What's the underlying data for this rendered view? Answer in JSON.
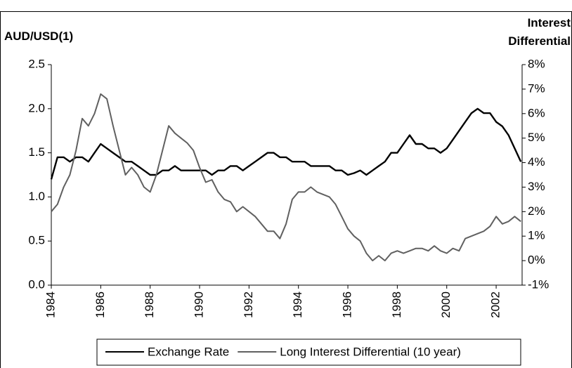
{
  "chart_data": {
    "type": "line",
    "ylabel": "AUD/USD(1)",
    "y2label": "Interest Differential",
    "x": [
      1984,
      1984.25,
      1984.5,
      1984.75,
      1985,
      1985.25,
      1985.5,
      1985.75,
      1986,
      1986.25,
      1986.5,
      1986.75,
      1987,
      1987.25,
      1987.5,
      1987.75,
      1988,
      1988.25,
      1988.5,
      1988.75,
      1989,
      1989.25,
      1989.5,
      1989.75,
      1990,
      1990.25,
      1990.5,
      1990.75,
      1991,
      1991.25,
      1991.5,
      1991.75,
      1992,
      1992.25,
      1992.5,
      1992.75,
      1993,
      1993.25,
      1993.5,
      1993.75,
      1994,
      1994.25,
      1994.5,
      1994.75,
      1995,
      1995.25,
      1995.5,
      1995.75,
      1996,
      1996.25,
      1996.5,
      1996.75,
      1997,
      1997.25,
      1997.5,
      1997.75,
      1998,
      1998.25,
      1998.5,
      1998.75,
      1999,
      1999.25,
      1999.5,
      1999.75,
      2000,
      2000.25,
      2000.5,
      2000.75,
      2001,
      2001.25,
      2001.5,
      2001.75,
      2002,
      2002.25,
      2002.5,
      2002.75,
      2003
    ],
    "series": [
      {
        "name": "Exchange Rate",
        "color": "#000000",
        "values": [
          1.2,
          1.45,
          1.45,
          1.4,
          1.45,
          1.45,
          1.4,
          1.5,
          1.6,
          1.55,
          1.5,
          1.45,
          1.4,
          1.4,
          1.35,
          1.3,
          1.25,
          1.25,
          1.3,
          1.3,
          1.35,
          1.3,
          1.3,
          1.3,
          1.3,
          1.3,
          1.25,
          1.3,
          1.3,
          1.35,
          1.35,
          1.3,
          1.35,
          1.4,
          1.45,
          1.5,
          1.5,
          1.45,
          1.45,
          1.4,
          1.4,
          1.4,
          1.35,
          1.35,
          1.35,
          1.35,
          1.3,
          1.3,
          1.25,
          1.27,
          1.3,
          1.25,
          1.3,
          1.35,
          1.4,
          1.5,
          1.5,
          1.6,
          1.7,
          1.6,
          1.6,
          1.55,
          1.55,
          1.5,
          1.55,
          1.65,
          1.75,
          1.85,
          1.95,
          2.0,
          1.95,
          1.95,
          1.85,
          1.8,
          1.7,
          1.55,
          1.4
        ]
      },
      {
        "name": "Long Interest Differential (10 year)",
        "color": "#606060",
        "axis": "y2",
        "values": [
          2.0,
          2.3,
          3.0,
          3.5,
          4.5,
          5.8,
          5.5,
          6.0,
          6.8,
          6.6,
          5.5,
          4.5,
          3.5,
          3.8,
          3.5,
          3.0,
          2.8,
          3.5,
          4.5,
          5.5,
          5.2,
          5.0,
          4.8,
          4.5,
          3.8,
          3.2,
          3.3,
          2.8,
          2.5,
          2.4,
          2.0,
          2.2,
          2.0,
          1.8,
          1.5,
          1.2,
          1.2,
          0.9,
          1.5,
          2.5,
          2.8,
          2.8,
          3.0,
          2.8,
          2.7,
          2.6,
          2.3,
          1.8,
          1.3,
          1.0,
          0.8,
          0.3,
          0.0,
          0.2,
          0.0,
          0.3,
          0.4,
          0.3,
          0.4,
          0.5,
          0.5,
          0.4,
          0.6,
          0.4,
          0.3,
          0.5,
          0.4,
          0.9,
          1.0,
          1.1,
          1.2,
          1.4,
          1.8,
          1.5,
          1.6,
          1.8,
          1.6
        ]
      }
    ],
    "xlim": [
      1984,
      2003.05
    ],
    "xticks": [
      1984,
      1986,
      1988,
      1990,
      1992,
      1994,
      1996,
      1998,
      2000,
      2002
    ],
    "ylim": [
      0,
      2.5
    ],
    "yticks": [
      {
        "value": 0,
        "label": "0.0"
      },
      0.5,
      {
        "value": 1,
        "label": "1.0"
      },
      1.5,
      {
        "value": 2,
        "label": "2.0"
      },
      2.5
    ],
    "y2lim": [
      -1,
      8
    ],
    "y2ticks": [
      {
        "value": -1,
        "label": "-1%"
      },
      {
        "value": 0,
        "label": "0%"
      },
      {
        "value": 1,
        "label": "1%"
      },
      {
        "value": 2,
        "label": "2%"
      },
      {
        "value": 3,
        "label": "3%"
      },
      {
        "value": 4,
        "label": "4%"
      },
      {
        "value": 5,
        "label": "5%"
      },
      {
        "value": 6,
        "label": "6%"
      },
      {
        "value": 7,
        "label": "7%"
      },
      {
        "value": 8,
        "label": "8%"
      }
    ],
    "grid": false,
    "legend": "bottom"
  }
}
